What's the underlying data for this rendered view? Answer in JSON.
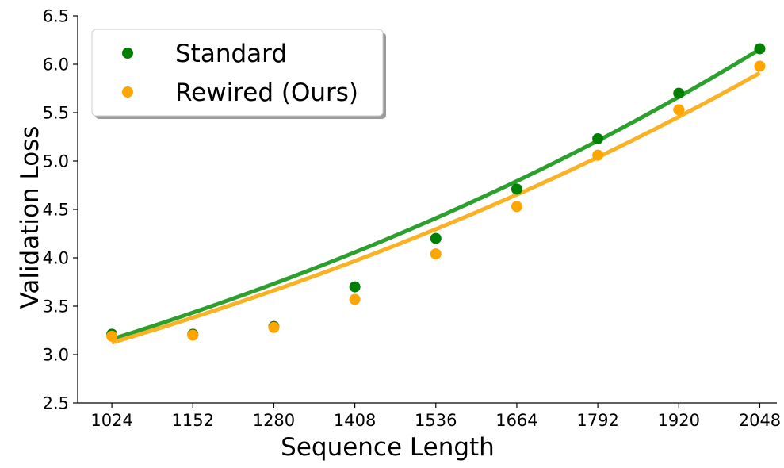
{
  "chart_data": {
    "type": "scatter",
    "xlabel": "Sequence Length",
    "ylabel": "Validation Loss",
    "xticks": [
      1024,
      1152,
      1280,
      1408,
      1536,
      1664,
      1792,
      1920,
      2048
    ],
    "xtick_labels": [
      "1024",
      "1152",
      "1280",
      "1408",
      "1536",
      "1664",
      "1792",
      "1920",
      "2048"
    ],
    "yticks": [
      2.5,
      3.0,
      3.5,
      4.0,
      4.5,
      5.0,
      5.5,
      6.0,
      6.5
    ],
    "ytick_labels": [
      "2.5",
      "3.0",
      "3.5",
      "4.0",
      "4.5",
      "5.0",
      "5.5",
      "6.0",
      "6.5"
    ],
    "xlim": [
      970,
      2075
    ],
    "ylim": [
      2.5,
      6.5
    ],
    "grid": false,
    "legend_position": "top-left",
    "series": [
      {
        "name": "Standard",
        "color": "#008000",
        "fit_color": "#2ca02c",
        "x": [
          1024,
          1152,
          1280,
          1408,
          1536,
          1664,
          1792,
          1920,
          2048
        ],
        "y": [
          3.21,
          3.21,
          3.29,
          3.7,
          4.2,
          4.71,
          5.23,
          5.7,
          6.16
        ],
        "fit": {
          "type": "exponential",
          "a": 1.621,
          "b": 0.0006515,
          "x_range": [
            1024,
            2048
          ]
        }
      },
      {
        "name": "Rewired (Ours)",
        "color": "#ffa500",
        "fit_color": "#fbb124",
        "x": [
          1024,
          1152,
          1280,
          1408,
          1536,
          1664,
          1792,
          1920,
          2048
        ],
        "y": [
          3.19,
          3.2,
          3.28,
          3.57,
          4.04,
          4.53,
          5.06,
          5.53,
          5.98
        ],
        "fit": {
          "type": "exponential",
          "a": 1.65,
          "b": 0.000623,
          "x_range": [
            1024,
            2048
          ]
        }
      }
    ]
  }
}
